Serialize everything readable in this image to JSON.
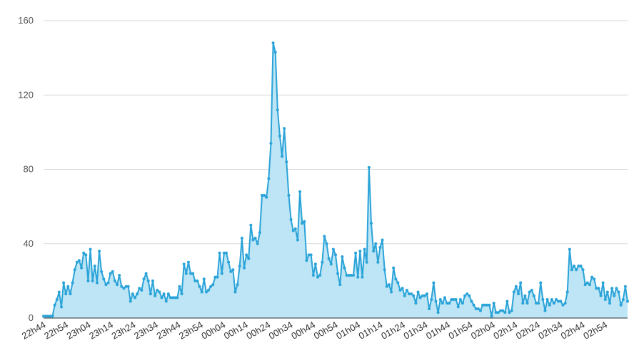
{
  "chart_data": {
    "type": "area",
    "title": "",
    "xlabel": "",
    "ylabel": "",
    "ylim": [
      0,
      160
    ],
    "y_ticks": [
      "0",
      "40",
      "80",
      "120",
      "160"
    ],
    "x_ticks": [
      "22h44",
      "22h54",
      "23h04",
      "23h14",
      "23h24",
      "23h34",
      "23h44",
      "23h54",
      "00h04",
      "00h14",
      "00h24",
      "00h34",
      "00h44",
      "00h54",
      "01h04",
      "01h14",
      "01h24",
      "01h34",
      "01h44",
      "01h54",
      "02h04",
      "02h14",
      "02h24",
      "02h34",
      "02h44",
      "02h54"
    ],
    "grid": true,
    "legend": "none",
    "colors": {
      "line": "#2aa3d8",
      "fill": "#bde5f5",
      "grid": "#d9d9d9",
      "axis": "#333333"
    },
    "series": [
      {
        "values": [
          1,
          1,
          1,
          1,
          1,
          7,
          10,
          14,
          6,
          19,
          13,
          17,
          13,
          19,
          26,
          30,
          31,
          27,
          35,
          34,
          20,
          37,
          20,
          28,
          19,
          36,
          25,
          21,
          18,
          19,
          24,
          25,
          20,
          18,
          23,
          17,
          16,
          17,
          17,
          9,
          13,
          11,
          13,
          16,
          15,
          21,
          24,
          20,
          13,
          20,
          12,
          15,
          14,
          11,
          13,
          9,
          13,
          11,
          11,
          11,
          11,
          17,
          13,
          29,
          24,
          30,
          24,
          24,
          20,
          20,
          17,
          14,
          21,
          14,
          15,
          17,
          18,
          22,
          22,
          35,
          24,
          35,
          35,
          30,
          25,
          26,
          14,
          18,
          28,
          43,
          27,
          34,
          32,
          50,
          42,
          43,
          40,
          46,
          66,
          66,
          65,
          75,
          94,
          148,
          143,
          112,
          98,
          87,
          102,
          84,
          66,
          53,
          47,
          48,
          42,
          68,
          51,
          52,
          31,
          34,
          34,
          23,
          29,
          22,
          23,
          30,
          44,
          40,
          32,
          29,
          37,
          34,
          24,
          18,
          33,
          27,
          23,
          23,
          23,
          23,
          35,
          22,
          36,
          22,
          37,
          30,
          81,
          51,
          36,
          40,
          30,
          38,
          42,
          26,
          17,
          18,
          14,
          27,
          21,
          19,
          15,
          16,
          12,
          15,
          13,
          13,
          12,
          8,
          14,
          11,
          12,
          12,
          13,
          5,
          10,
          19,
          9,
          3,
          10,
          8,
          11,
          8,
          8,
          10,
          10,
          10,
          6,
          10,
          8,
          12,
          13,
          12,
          9,
          7,
          5,
          5,
          4,
          7,
          7,
          7,
          7,
          1,
          8,
          3,
          3,
          4,
          4,
          3,
          9,
          3,
          4,
          14,
          17,
          13,
          19,
          8,
          12,
          8,
          14,
          15,
          12,
          8,
          8,
          19,
          10,
          4,
          10,
          7,
          10,
          8,
          10,
          9,
          9,
          7,
          8,
          14,
          37,
          26,
          28,
          26,
          28,
          28,
          26,
          18,
          19,
          18,
          22,
          21,
          16,
          16,
          12,
          19,
          10,
          14,
          8,
          16,
          12,
          16,
          14,
          7,
          10,
          17,
          9
        ]
      }
    ]
  }
}
